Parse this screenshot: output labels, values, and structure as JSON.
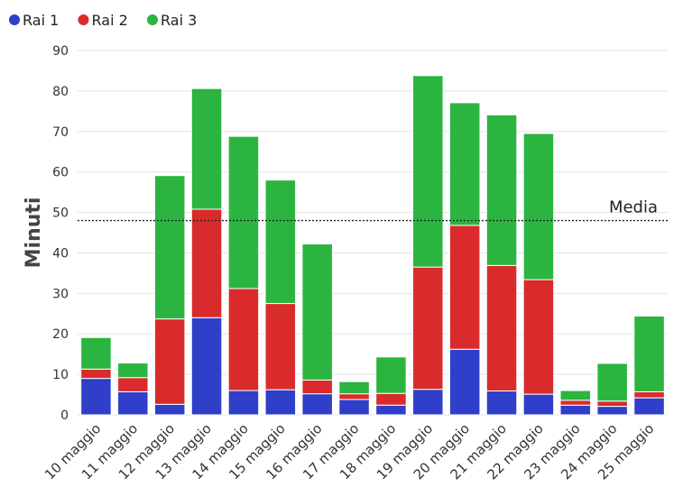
{
  "chart_data": {
    "type": "bar",
    "stacked": true,
    "title": "",
    "xlabel": "",
    "ylabel": "Minuti",
    "ylim": [
      0,
      90
    ],
    "yticks": [
      0,
      10,
      20,
      30,
      40,
      50,
      60,
      70,
      80,
      90
    ],
    "grid": true,
    "legend_position": "top-left",
    "categories": [
      "10 maggio",
      "11 maggio",
      "12 maggio",
      "13 maggio",
      "14 maggio",
      "15 maggio",
      "16 maggio",
      "17 maggio",
      "18 maggio",
      "19 maggio",
      "20 maggio",
      "21 maggio",
      "22 maggio",
      "23 maggio",
      "24 maggio",
      "25 maggio"
    ],
    "series": [
      {
        "name": "Rai 1",
        "color": "#2f3fc9",
        "values": [
          9,
          5.7,
          2.6,
          24,
          6,
          6.2,
          5.2,
          3.8,
          2.4,
          6.3,
          16.2,
          5.9,
          5.1,
          2.4,
          2.1,
          4.2
        ]
      },
      {
        "name": "Rai 2",
        "color": "#d92b2b",
        "values": [
          2.3,
          3.5,
          21.1,
          26.8,
          25.2,
          21.3,
          3.4,
          1.4,
          2.9,
          30.2,
          30.6,
          31,
          28.3,
          1.2,
          1.3,
          1.5
        ]
      },
      {
        "name": "Rai 3",
        "color": "#2bb540",
        "values": [
          7.8,
          3.6,
          35.4,
          29.8,
          37.6,
          30.5,
          33.6,
          3,
          9,
          47.3,
          30.3,
          37.2,
          36.1,
          2.4,
          9.3,
          18.7
        ]
      }
    ],
    "reference_line": {
      "label": "Media",
      "value": 48
    }
  }
}
